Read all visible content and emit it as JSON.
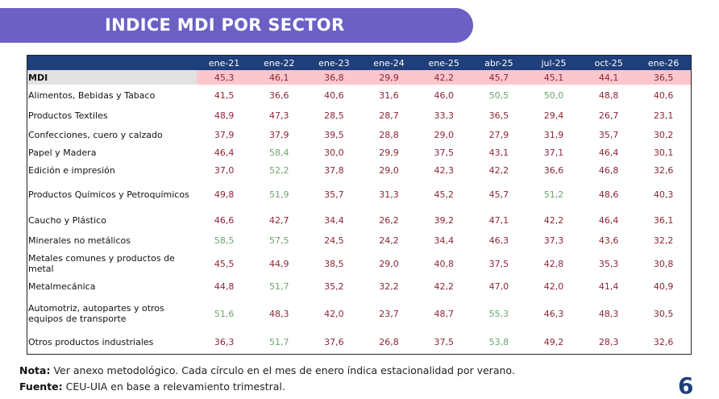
{
  "title": "INDICE MDI POR SECTOR",
  "table": {
    "columns": [
      "ene-21",
      "ene-22",
      "ene-23",
      "ene-24",
      "ene-25",
      "abr-25",
      "jul-25",
      "oct-25",
      "ene-26"
    ],
    "mdi": {
      "label": "MDI",
      "values": [
        "45,3",
        "46,1",
        "36,8",
        "29,9",
        "42,2",
        "45,7",
        "45,1",
        "44,1",
        "36,5"
      ]
    },
    "rows": [
      {
        "label": "Alimentos, Bebidas y Tabaco",
        "values": [
          "41,5",
          "36,6",
          "40,6",
          "31,6",
          "46,0",
          "50,5",
          "50,0",
          "48,8",
          "40,6"
        ]
      },
      {
        "label": "Productos Textiles",
        "values": [
          "48,9",
          "47,3",
          "28,5",
          "28,7",
          "33,3",
          "36,5",
          "29,4",
          "26,7",
          "23,1"
        ]
      },
      {
        "label": "Confecciones, cuero y calzado",
        "values": [
          "37,9",
          "37,9",
          "39,5",
          "28,8",
          "29,0",
          "27,9",
          "31,9",
          "35,7",
          "30,2"
        ]
      },
      {
        "label": "Papel y Madera",
        "values": [
          "46,4",
          "58,4",
          "30,0",
          "29,9",
          "37,5",
          "43,1",
          "37,1",
          "46,4",
          "30,1"
        ]
      },
      {
        "label": "Edición e impresión",
        "values": [
          "37,0",
          "52,2",
          "37,8",
          "29,0",
          "42,3",
          "42,2",
          "36,6",
          "46,8",
          "32,6"
        ]
      },
      {
        "label": "Productos Químicos y Petroquímicos",
        "values": [
          "49,8",
          "51,9",
          "35,7",
          "31,3",
          "45,2",
          "45,7",
          "51,2",
          "48,6",
          "40,3"
        ]
      },
      {
        "label": "Caucho y Plástico",
        "values": [
          "46,6",
          "42,7",
          "34,4",
          "26,2",
          "39,2",
          "47,1",
          "42,2",
          "46,4",
          "36,1"
        ]
      },
      {
        "label": "Minerales no metálicos",
        "values": [
          "58,5",
          "57,5",
          "24,5",
          "24,2",
          "34,4",
          "46,3",
          "37,3",
          "43,6",
          "32,2"
        ]
      },
      {
        "label": "Metales comunes y productos de metal",
        "values": [
          "45,5",
          "44,9",
          "38,5",
          "29,0",
          "40,8",
          "37,5",
          "42,8",
          "35,3",
          "30,8"
        ]
      },
      {
        "label": "Metalmecánica",
        "values": [
          "44,8",
          "51,7",
          "35,2",
          "32,2",
          "42,2",
          "47,0",
          "42,0",
          "41,4",
          "40,9"
        ]
      },
      {
        "label": "Automotriz, autopartes y otros equipos de transporte",
        "values": [
          "51,6",
          "48,3",
          "42,0",
          "23,7",
          "48,7",
          "55,3",
          "46,3",
          "48,3",
          "30,5"
        ]
      },
      {
        "label": "Otros productos industriales",
        "values": [
          "36,3",
          "51,7",
          "37,6",
          "26,8",
          "37,5",
          "53,8",
          "49,2",
          "28,3",
          "32,6"
        ]
      }
    ],
    "threshold": 50,
    "colors": {
      "below": "#8b2535",
      "above": "#6ea56c",
      "header": "#1f3f7a",
      "mdi_row": "#fcc7cc"
    }
  },
  "footer": {
    "nota_label": "Nota:",
    "nota_text": " Ver anexo metodológico. Cada círculo en el mes de enero índica estacionalidad por verano.",
    "fuente_label": "Fuente:",
    "fuente_text": " CEU-UIA en base a relevamiento trimestral.",
    "page_number": "6"
  }
}
